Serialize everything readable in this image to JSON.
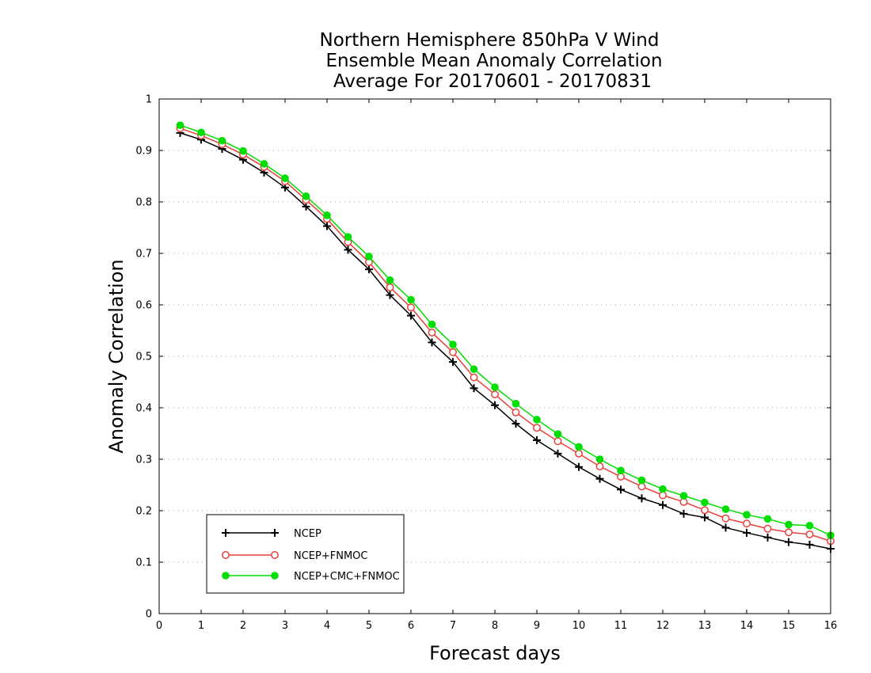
{
  "chart_data": {
    "type": "line",
    "title_lines": [
      "Northern Hemisphere 850hPa V Wind",
      "Ensemble Mean Anomaly Correlation",
      "Average For 20170601 - 20170831"
    ],
    "xlabel": "Forecast days",
    "ylabel": "Anomaly Correlation",
    "xlim": [
      0,
      16
    ],
    "ylim": [
      0,
      1
    ],
    "x_ticks": [
      "0",
      "1",
      "2",
      "3",
      "4",
      "5",
      "6",
      "7",
      "8",
      "9",
      "10",
      "11",
      "12",
      "13",
      "14",
      "15",
      "16"
    ],
    "y_ticks": [
      "0",
      "0.1",
      "0.2",
      "0.3",
      "0.4",
      "0.5",
      "0.6",
      "0.7",
      "0.8",
      "0.9",
      "1"
    ],
    "grid": "horizontal dotted",
    "legend_position": "bottom-left",
    "x": [
      0.5,
      1,
      1.5,
      2,
      2.5,
      3,
      3.5,
      4,
      4.5,
      5,
      5.5,
      6,
      6.5,
      7,
      7.5,
      8,
      8.5,
      9,
      9.5,
      10,
      10.5,
      11,
      11.5,
      12,
      12.5,
      13,
      13.5,
      14,
      14.5,
      15,
      15.5,
      16
    ],
    "series": [
      {
        "name": "NCEP",
        "color": "#000000",
        "marker": "plus",
        "values": [
          0.934,
          0.921,
          0.903,
          0.882,
          0.857,
          0.828,
          0.791,
          0.753,
          0.707,
          0.669,
          0.619,
          0.579,
          0.527,
          0.489,
          0.438,
          0.405,
          0.369,
          0.337,
          0.311,
          0.285,
          0.262,
          0.241,
          0.224,
          0.211,
          0.194,
          0.187,
          0.167,
          0.157,
          0.148,
          0.139,
          0.134,
          0.126
        ]
      },
      {
        "name": "NCEP+FNMOC",
        "color": "#e8403a",
        "marker": "open-circle",
        "values": [
          0.943,
          0.929,
          0.912,
          0.892,
          0.868,
          0.84,
          0.804,
          0.767,
          0.722,
          0.683,
          0.634,
          0.595,
          0.546,
          0.508,
          0.459,
          0.426,
          0.391,
          0.361,
          0.335,
          0.311,
          0.286,
          0.266,
          0.247,
          0.23,
          0.217,
          0.201,
          0.185,
          0.175,
          0.165,
          0.158,
          0.154,
          0.141
        ]
      },
      {
        "name": "NCEP+CMC+FNMOC",
        "color": "#00dd00",
        "marker": "filled-circle",
        "values": [
          0.949,
          0.935,
          0.919,
          0.899,
          0.874,
          0.846,
          0.811,
          0.774,
          0.732,
          0.694,
          0.648,
          0.61,
          0.562,
          0.523,
          0.475,
          0.44,
          0.408,
          0.377,
          0.349,
          0.324,
          0.3,
          0.278,
          0.259,
          0.242,
          0.229,
          0.216,
          0.203,
          0.192,
          0.184,
          0.173,
          0.171,
          0.152
        ]
      }
    ]
  }
}
